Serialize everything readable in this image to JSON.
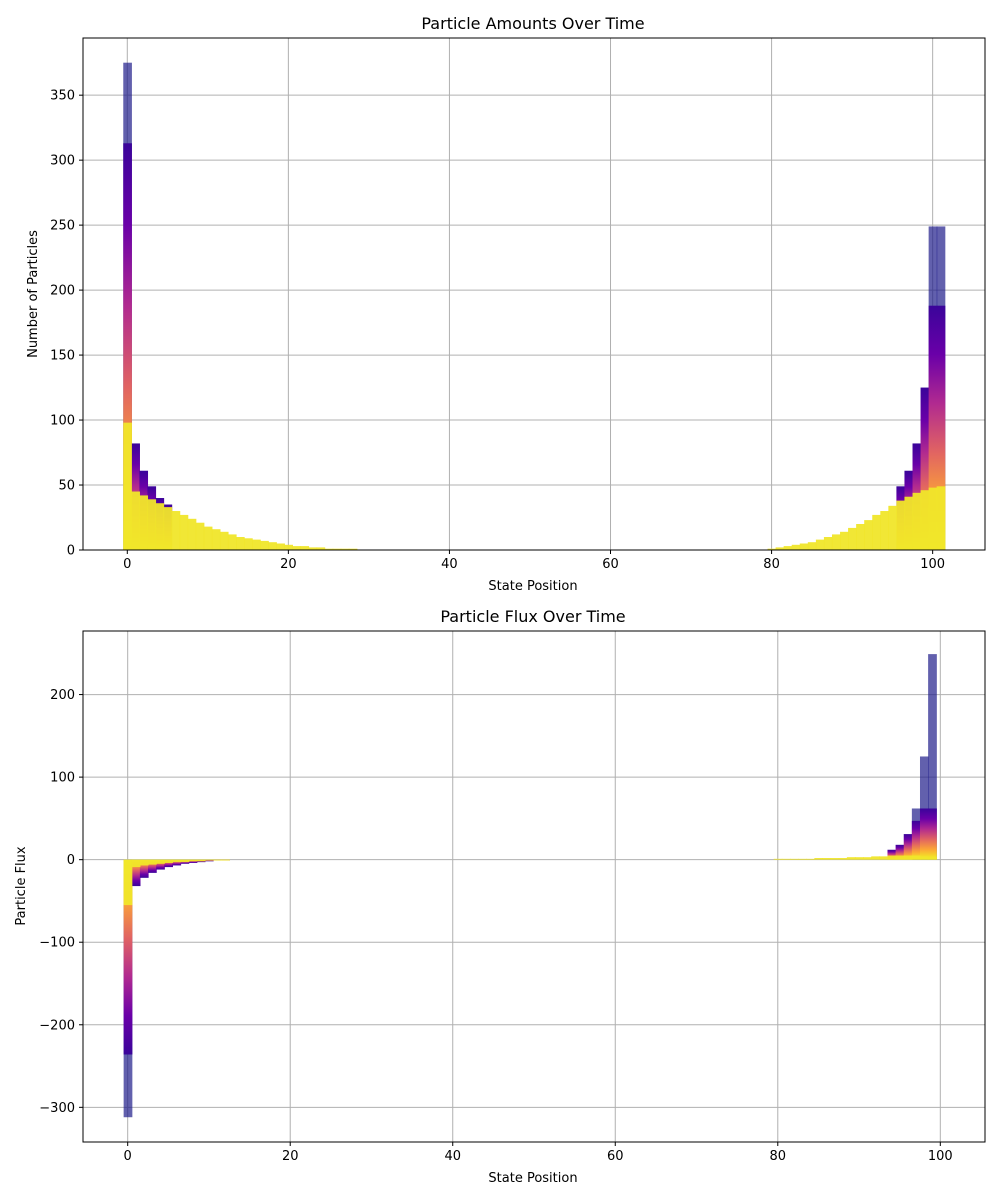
{
  "colors": {
    "background": "#ffffff",
    "grid": "#b0b0b0",
    "colormap": "plasma",
    "colormap_stops": [
      "#0d0887",
      "#6a00a8",
      "#b12a90",
      "#e16462",
      "#fca636",
      "#f0f921"
    ],
    "overlay_alpha": 0.7
  },
  "chart_data": [
    {
      "type": "bar",
      "title": "Particle Amounts Over Time",
      "xlabel": "State Position",
      "ylabel": "Number of Particles",
      "xlim": [
        -5.5,
        106.5
      ],
      "ylim": [
        0,
        394
      ],
      "xticks": [
        0,
        20,
        40,
        60,
        80,
        100
      ],
      "yticks": [
        0,
        50,
        100,
        150,
        200,
        250,
        300,
        350
      ],
      "grid": true,
      "legend": "none",
      "notes_visible": "stacked overlapping bars drawn for successive time steps, colored from dark purple (early) to yellow (late)",
      "series": [
        {
          "time_index": "early",
          "x": [
            0,
            1,
            2,
            3,
            4,
            5,
            98,
            99,
            100,
            101
          ],
          "values": [
            375,
            0,
            0,
            0,
            0,
            0,
            0,
            0,
            249,
            249
          ]
        },
        {
          "time_index": "mid",
          "x": [
            0,
            1,
            2,
            3,
            4,
            5,
            96,
            97,
            98,
            99,
            100,
            101
          ],
          "values": [
            313,
            82,
            61,
            49,
            40,
            35,
            49,
            61,
            82,
            125,
            188,
            188
          ]
        },
        {
          "time_index": "late",
          "x": [
            0,
            1,
            2,
            3,
            4,
            5,
            6,
            7,
            8,
            9,
            10,
            11,
            12,
            13,
            14,
            15,
            16,
            17,
            18,
            19,
            20,
            21,
            22,
            23,
            24,
            25,
            26,
            27,
            28,
            80,
            81,
            82,
            83,
            84,
            85,
            86,
            87,
            88,
            89,
            90,
            91,
            92,
            93,
            94,
            95,
            96,
            97,
            98,
            99,
            100,
            101
          ],
          "values": [
            98,
            45,
            42,
            39,
            36,
            33,
            30,
            27,
            24,
            21,
            18,
            16,
            14,
            12,
            10,
            9,
            8,
            7,
            6,
            5,
            4,
            3,
            3,
            2,
            2,
            1,
            1,
            1,
            1,
            1,
            2,
            3,
            4,
            5,
            6,
            8,
            10,
            12,
            14,
            17,
            20,
            23,
            27,
            30,
            34,
            38,
            41,
            44,
            46,
            48,
            49
          ]
        }
      ]
    },
    {
      "type": "bar",
      "title": "Particle Flux Over Time",
      "xlabel": "State Position",
      "ylabel": "Particle Flux",
      "xlim": [
        -5.5,
        105.5
      ],
      "ylim": [
        -342,
        277
      ],
      "xticks": [
        0,
        20,
        40,
        60,
        80,
        100
      ],
      "yticks": [
        -300,
        -200,
        -100,
        0,
        100,
        200
      ],
      "grid": true,
      "legend": "none",
      "series": [
        {
          "time_index": "early",
          "x": [
            0,
            97,
            98,
            99
          ],
          "values": [
            -312,
            62,
            125,
            249
          ]
        },
        {
          "time_index": "mid",
          "x": [
            0,
            1,
            2,
            3,
            4,
            5,
            6,
            7,
            8,
            9,
            10,
            11,
            12,
            94,
            95,
            96,
            97,
            98,
            99
          ],
          "values": [
            -236,
            -32,
            -22,
            -16,
            -12,
            -9,
            -7,
            -5,
            -4,
            -3,
            -2,
            -1,
            -1,
            12,
            18,
            31,
            47,
            62,
            62
          ]
        },
        {
          "time_index": "late",
          "x": [
            0,
            1,
            2,
            3,
            4,
            5,
            6,
            7,
            8,
            9,
            10,
            11,
            12,
            80,
            81,
            82,
            83,
            84,
            85,
            86,
            87,
            88,
            89,
            90,
            91,
            92,
            93,
            94,
            95,
            96,
            97,
            98,
            99
          ],
          "values": [
            -55,
            -9,
            -7,
            -6,
            -5,
            -4,
            -3,
            -3,
            -2,
            -2,
            -1,
            -1,
            -1,
            1,
            1,
            1,
            1,
            1,
            2,
            2,
            2,
            2,
            3,
            3,
            3,
            4,
            4,
            5,
            5,
            5,
            5,
            4,
            3
          ]
        }
      ]
    }
  ]
}
